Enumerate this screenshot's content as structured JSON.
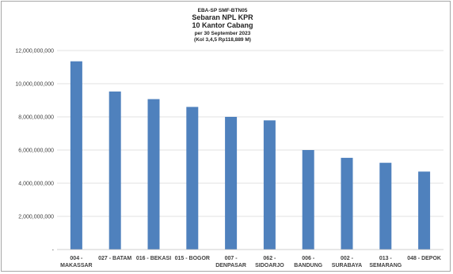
{
  "chart_data": {
    "type": "bar",
    "title_lines": [
      "EBA-SP SMF-BTN05",
      "Sebaran NPL KPR",
      "10 Kantor Cabang",
      "per 30 September 2023",
      "(Kol 3,4,5 Rp118,889 M)"
    ],
    "categories": [
      [
        "004 -",
        "MAKASSAR"
      ],
      [
        "027 - BATAM"
      ],
      [
        "016 - BEKASI"
      ],
      [
        "015 - BOGOR"
      ],
      [
        "007 -",
        "DENPASAR"
      ],
      [
        "062 -",
        "SIDOARJO"
      ],
      [
        "006 -",
        "BANDUNG"
      ],
      [
        "002 -",
        "SURABAYA"
      ],
      [
        "013 -",
        "SEMARANG"
      ],
      [
        "048 - DEPOK"
      ]
    ],
    "values": [
      11350000000,
      9530000000,
      9070000000,
      8600000000,
      8000000000,
      7790000000,
      6000000000,
      5530000000,
      5230000000,
      4700000000
    ],
    "ylim": [
      0,
      12000000000
    ],
    "yticks": [
      0,
      2000000000,
      4000000000,
      6000000000,
      8000000000,
      10000000000,
      12000000000
    ],
    "ytick_labels": [
      "-",
      "2,000,000,000",
      "4,000,000,000",
      "6,000,000,000",
      "8,000,000,000",
      "10,000,000,000",
      "12,000,000,000"
    ],
    "bar_color": "#4f81bd",
    "grid": true,
    "legend": "none"
  }
}
